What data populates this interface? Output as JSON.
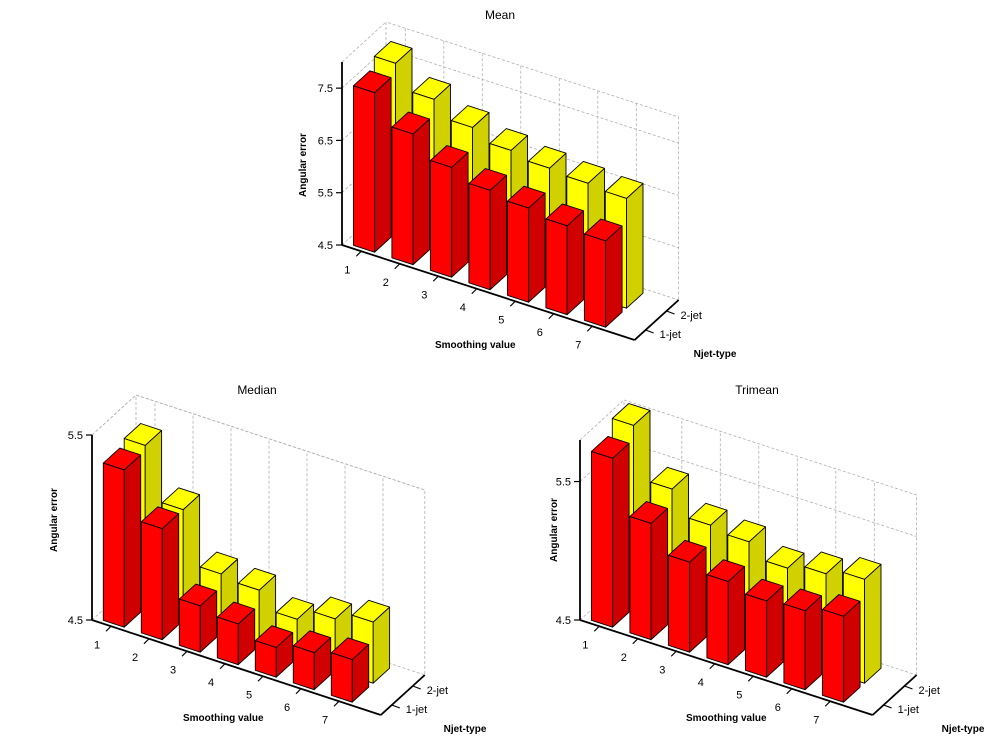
{
  "chart_data": [
    {
      "type": "bar",
      "title": "Mean",
      "xlabel": "Smoothing value",
      "ylabel": "Angular error",
      "zlabel": "Njet-type",
      "categories": [
        "1",
        "2",
        "3",
        "4",
        "5",
        "6",
        "7"
      ],
      "depth_categories": [
        "1-jet",
        "2-jet"
      ],
      "ylim": [
        4.5,
        8.0
      ],
      "yticks": [
        "4.5",
        "5.5",
        "6.5",
        "7.5"
      ],
      "grid": true,
      "series": [
        {
          "name": "1-jet",
          "values": [
            7.55,
            7.0,
            6.6,
            6.4,
            6.3,
            6.2,
            6.15
          ]
        },
        {
          "name": "2-jet",
          "values": [
            7.75,
            7.3,
            7.0,
            6.8,
            6.7,
            6.65,
            6.6
          ]
        }
      ],
      "colors": {
        "1-jet": "#ff0000",
        "2-jet": "#ffff00"
      }
    },
    {
      "type": "bar",
      "title": "Median",
      "xlabel": "Smoothing value",
      "ylabel": "Angular error",
      "zlabel": "Njet-type",
      "categories": [
        "1",
        "2",
        "3",
        "4",
        "5",
        "6",
        "7"
      ],
      "depth_categories": [
        "1-jet",
        "2-jet"
      ],
      "ylim": [
        4.5,
        5.5
      ],
      "yticks": [
        "4.5",
        "5.5"
      ],
      "grid": true,
      "series": [
        {
          "name": "1-jet",
          "values": [
            5.35,
            5.1,
            4.75,
            4.72,
            4.66,
            4.7,
            4.73
          ]
        },
        {
          "name": "2-jet",
          "values": [
            5.38,
            5.1,
            4.82,
            4.8,
            4.71,
            4.78,
            4.83
          ]
        }
      ],
      "colors": {
        "1-jet": "#ff0000",
        "2-jet": "#ffff00"
      }
    },
    {
      "type": "bar",
      "title": "Trimean",
      "xlabel": "Smoothing value",
      "ylabel": "Angular error",
      "zlabel": "Njet-type",
      "categories": [
        "1",
        "2",
        "3",
        "4",
        "5",
        "6",
        "7"
      ],
      "depth_categories": [
        "1-jet",
        "2-jet"
      ],
      "ylim": [
        4.5,
        5.8
      ],
      "yticks": [
        "4.5",
        "5.5"
      ],
      "grid": true,
      "series": [
        {
          "name": "1-jet",
          "values": [
            5.72,
            5.34,
            5.15,
            5.1,
            5.05,
            5.07,
            5.12
          ]
        },
        {
          "name": "2-jet",
          "values": [
            5.82,
            5.45,
            5.28,
            5.25,
            5.15,
            5.2,
            5.25
          ]
        }
      ],
      "colors": {
        "1-jet": "#ff0000",
        "2-jet": "#ffff00"
      }
    }
  ]
}
